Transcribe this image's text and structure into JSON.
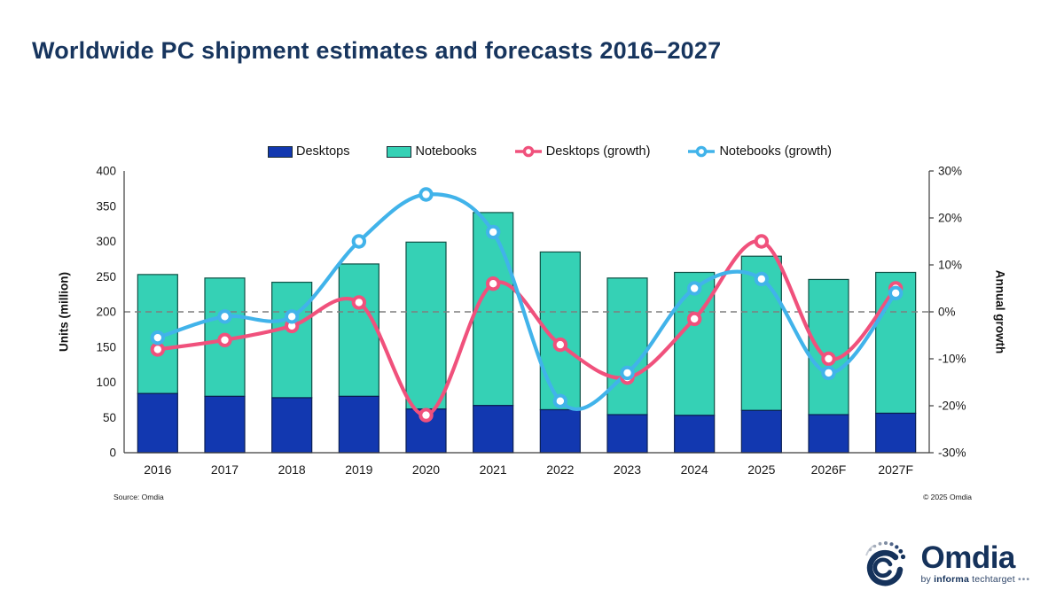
{
  "title": "Worldwide PC shipment estimates and forecasts 2016–2027",
  "legend": [
    {
      "label": "Desktops",
      "type": "bar-swatch"
    },
    {
      "label": "Notebooks",
      "type": "bar-swatch"
    },
    {
      "label": "Desktops (growth)",
      "type": "line-marker"
    },
    {
      "label": "Notebooks (growth)",
      "type": "line-marker"
    }
  ],
  "axes": {
    "left_label": "Units (million)",
    "right_label": "Annual growth",
    "yticks_left": [
      0,
      50,
      100,
      150,
      200,
      250,
      300,
      350,
      400
    ],
    "yticks_right_pct": [
      -30,
      -20,
      -10,
      0,
      10,
      20,
      30
    ]
  },
  "chart_data": {
    "type": "combo (stacked bar + line)",
    "title": "Worldwide PC shipment estimates and forecasts 2016–2027",
    "categories": [
      "2016",
      "2017",
      "2018",
      "2019",
      "2020",
      "2021",
      "2022",
      "2023",
      "2024",
      "2025",
      "2026F",
      "2027F"
    ],
    "ylabel_left": "Units (million)",
    "ylabel_right": "Annual growth",
    "ylim_left": [
      0,
      400
    ],
    "ylim_right": [
      -30,
      30
    ],
    "gridline": {
      "at_left_value": 200,
      "at_right_value_pct": 0,
      "style": "dashed"
    },
    "legend_position": "top-center",
    "series": [
      {
        "name": "Desktops",
        "type": "bar",
        "stacked": true,
        "axis": "left",
        "unit": "million units",
        "values": [
          84,
          80,
          78,
          80,
          62,
          67,
          61,
          54,
          53,
          60,
          54,
          56
        ]
      },
      {
        "name": "Notebooks",
        "type": "bar",
        "stacked": true,
        "axis": "left",
        "unit": "million units",
        "values": [
          169,
          168,
          164,
          188,
          237,
          274,
          224,
          194,
          203,
          219,
          192,
          200
        ]
      },
      {
        "name": "Desktops (growth)",
        "type": "line",
        "axis": "right",
        "unit": "%",
        "values": [
          -8,
          -6,
          -3,
          2,
          -22,
          6,
          -7,
          -14,
          -1.5,
          15,
          -10,
          5
        ]
      },
      {
        "name": "Notebooks (growth)",
        "type": "line",
        "axis": "right",
        "unit": "%",
        "values": [
          -5.5,
          -1,
          -1,
          15,
          25,
          17,
          -19,
          -13,
          5,
          7,
          -13,
          4
        ]
      }
    ]
  },
  "footer": {
    "source": "Source: Omdia",
    "copyright": "© 2025 Omdia"
  },
  "logo": {
    "name": "Omdia",
    "byline_prefix": "by",
    "byline_bold": "informa",
    "byline_rest": "techtarget",
    "byline_dots": "•••"
  },
  "colors": {
    "title_text": "#17355E",
    "desktops_bar": "#1238B0",
    "desktops_bar_border": "#0A1E54",
    "notebooks_bar": "#35D1B5",
    "notebooks_bar_border": "#0F5045",
    "desktops_line": "#F0517C",
    "notebooks_line": "#41B3EA",
    "gridline": "#7F7F7F",
    "axis": "#3C3C3C",
    "logo_navy": "#15325B"
  }
}
